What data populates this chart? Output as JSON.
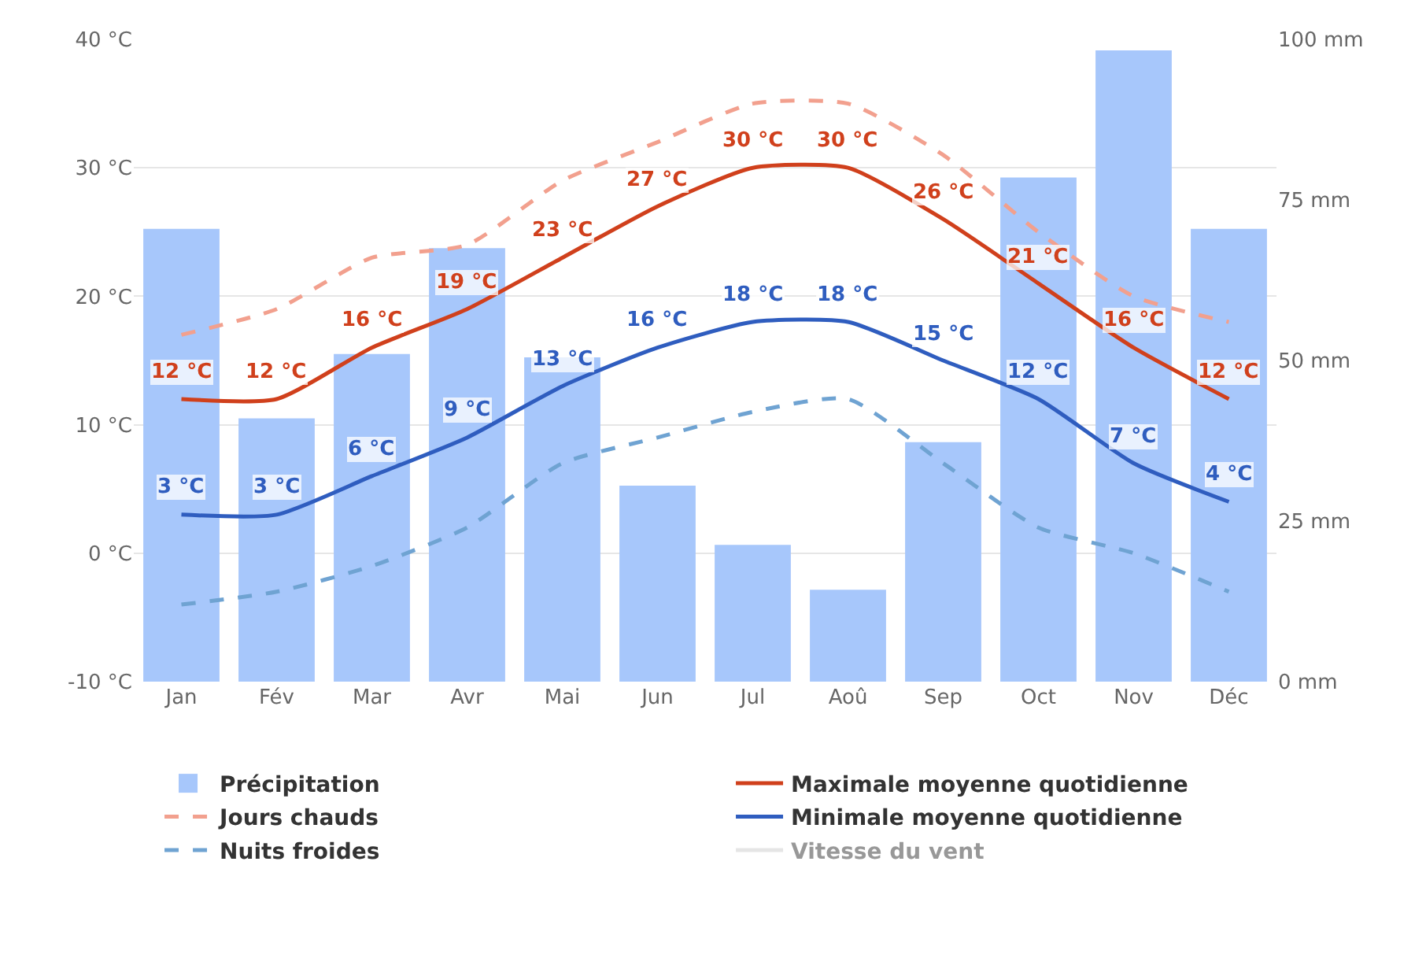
{
  "chart_data": {
    "type": "line",
    "categories": [
      "Jan",
      "Fév",
      "Mar",
      "Avr",
      "Mai",
      "Jun",
      "Jul",
      "Aoû",
      "Sep",
      "Oct",
      "Nov",
      "Déc"
    ],
    "series": [
      {
        "name": "Précipitation",
        "type": "bar",
        "axis": "y2",
        "color": "#a7c7fb",
        "values": [
          70.5,
          41,
          51,
          67.5,
          50.5,
          30.5,
          21.3,
          14.3,
          37.3,
          78.5,
          98.3,
          70.5
        ]
      },
      {
        "name": "Maximale moyenne quotidienne",
        "color": "#d0401c",
        "line_style": "solid",
        "values": [
          12,
          12,
          16,
          19,
          23,
          27,
          30,
          30,
          26,
          21,
          16,
          12
        ],
        "value_labels": [
          "12 °C",
          "12 °C",
          "16 °C",
          "19 °C",
          "23 °C",
          "27 °C",
          "30 °C",
          "30 °C",
          "26 °C",
          "21 °C",
          "16 °C",
          "12 °C"
        ]
      },
      {
        "name": "Jours chauds",
        "color": "#f2a08e",
        "line_style": "dashed",
        "values": [
          17,
          19,
          23,
          24,
          29,
          32,
          35,
          35,
          31,
          25,
          20,
          18
        ]
      },
      {
        "name": "Minimale moyenne quotidienne",
        "color": "#2f5dbf",
        "line_style": "solid",
        "values": [
          3,
          3,
          6,
          9,
          13,
          16,
          18,
          18,
          15,
          12,
          7,
          4
        ],
        "value_labels": [
          "3 °C",
          "3 °C",
          "6 °C",
          "9 °C",
          "13 °C",
          "16 °C",
          "18 °C",
          "18 °C",
          "15 °C",
          "12 °C",
          "7 °C",
          "4 °C"
        ]
      },
      {
        "name": "Nuits froides",
        "color": "#6fa3d2",
        "line_style": "dashed",
        "values": [
          -4,
          -3,
          -1,
          2,
          7,
          9,
          11,
          12,
          7,
          2,
          0,
          -3
        ]
      },
      {
        "name": "Vitesse du vent",
        "color": "#cccccc",
        "line_style": "solid",
        "values": [
          null,
          null,
          null,
          null,
          null,
          null,
          null,
          null,
          null,
          null,
          null,
          null
        ]
      }
    ],
    "ylim": [
      -10,
      40
    ],
    "yticks": [
      {
        "value": -10,
        "label": "-10 °C"
      },
      {
        "value": 0,
        "label": "0 °C"
      },
      {
        "value": 10,
        "label": "10 °C"
      },
      {
        "value": 20,
        "label": "20 °C"
      },
      {
        "value": 30,
        "label": "30 °C"
      },
      {
        "value": 40,
        "label": "40 °C"
      }
    ],
    "y2lim": [
      0,
      100
    ],
    "y2ticks": [
      {
        "value": 0,
        "label": "0 mm"
      },
      {
        "value": 25,
        "label": "25 mm"
      },
      {
        "value": 50,
        "label": "50 mm"
      },
      {
        "value": 75,
        "label": "75 mm"
      },
      {
        "value": 100,
        "label": "100 mm"
      }
    ],
    "grid": "y",
    "legend": "bottom",
    "marker": "none"
  }
}
